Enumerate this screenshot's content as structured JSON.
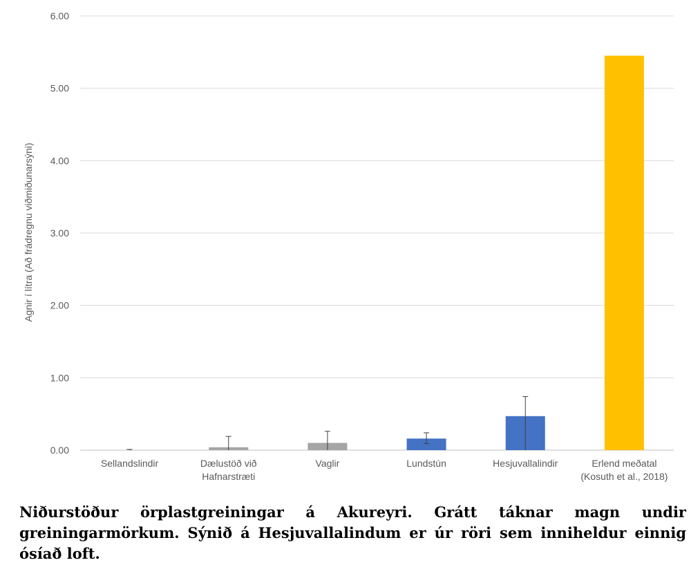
{
  "chart_data": {
    "type": "bar",
    "ylabel": "Agnir í lítra (Að frádregnu viðmiðunarsýni)",
    "ylim": [
      0,
      6
    ],
    "yticks": [
      "0.00",
      "1.00",
      "2.00",
      "3.00",
      "4.00",
      "5.00",
      "6.00"
    ],
    "grid": true,
    "categories": [
      [
        "Sellandslindir"
      ],
      [
        "Dælustöð við",
        "Hafnarstræti"
      ],
      [
        "Vaglir"
      ],
      [
        "Lundstún"
      ],
      [
        "Hesjuvallalindir"
      ],
      [
        "Erlend meðatal",
        "(Kosuth et al., 2018)"
      ]
    ],
    "values": [
      0.0,
      0.04,
      0.1,
      0.16,
      0.47,
      5.45
    ],
    "error_low": [
      0.0,
      0.0,
      0.0,
      0.09,
      0.0,
      null
    ],
    "error_high": [
      0.01,
      0.19,
      0.26,
      0.24,
      0.74,
      null
    ],
    "colors": [
      "#a5a5a5",
      "#a5a5a5",
      "#a5a5a5",
      "#4472c4",
      "#4472c4",
      "#ffc000"
    ]
  },
  "caption": "Niðurstöður örplastgreiningar á Akureyri. Grátt táknar magn undir greiningarmörkum. Sýnið á Hesjuvallalindum er úr röri sem inniheldur einnig ósíað loft."
}
